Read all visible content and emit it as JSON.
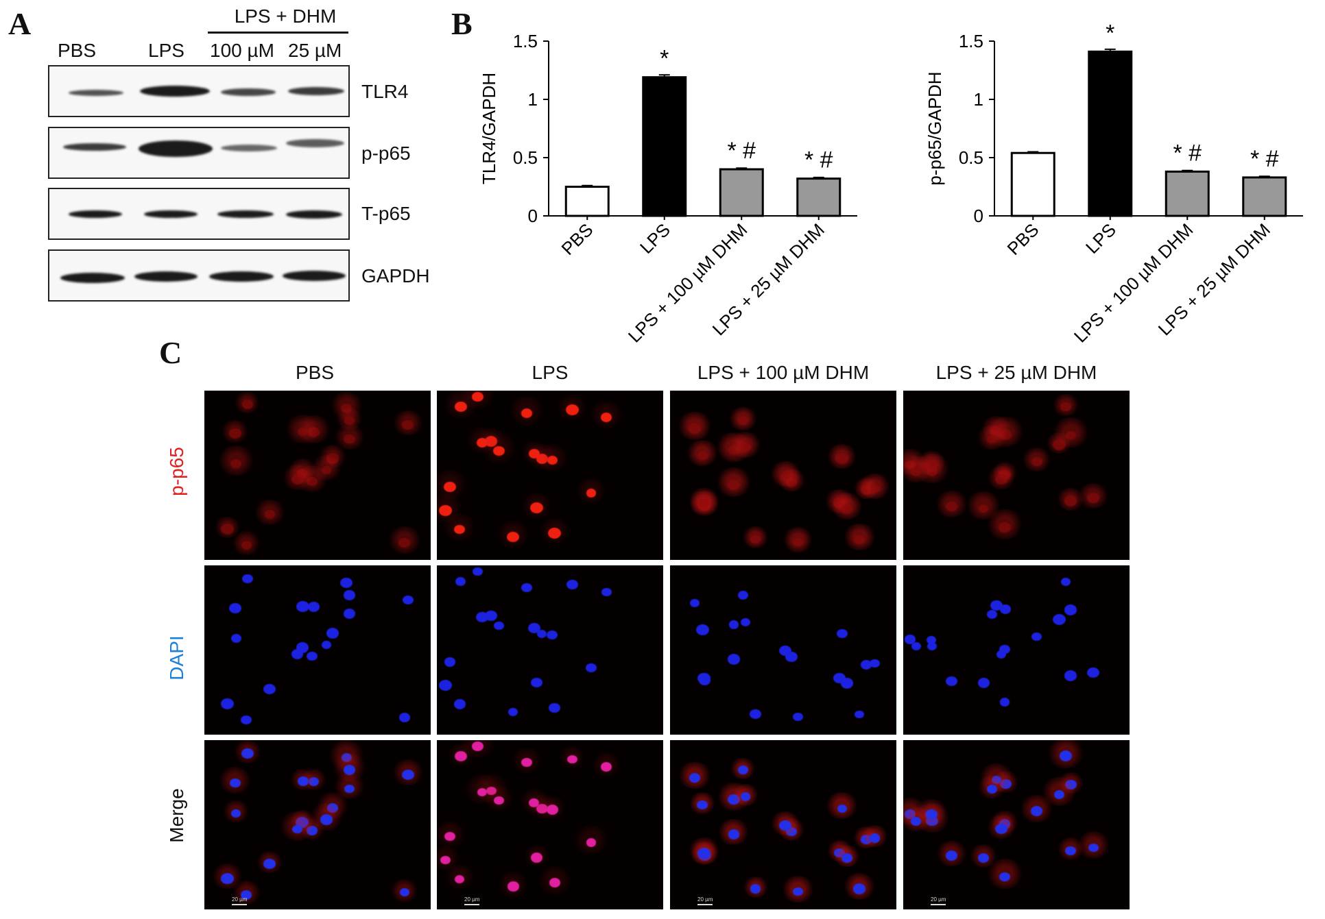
{
  "panels": {
    "a": "A",
    "b": "B",
    "c": "C"
  },
  "western_blot": {
    "lanes": [
      "PBS",
      "LPS",
      "100 µM",
      "25 µM"
    ],
    "group_header": "LPS + DHM",
    "proteins": [
      "TLR4",
      "p-p65",
      "T-p65",
      "GAPDH"
    ]
  },
  "chart_data": [
    {
      "type": "bar",
      "categories": [
        "PBS",
        "LPS",
        "LPS + 100 µM DHM",
        "LPS + 25 µM DHM"
      ],
      "values": [
        0.25,
        1.19,
        0.4,
        0.32
      ],
      "errors": [
        0.01,
        0.02,
        0.01,
        0.01
      ],
      "annotations": [
        "",
        "*",
        "* #",
        "* #"
      ],
      "bar_colors": [
        "#ffffff",
        "#000000",
        "#999999",
        "#999999"
      ],
      "ylabel": "TLR4/GAPDH",
      "ylim": [
        0,
        1.5
      ],
      "yticks": [
        "0",
        "0.5",
        "1",
        "1.5"
      ],
      "grid": false
    },
    {
      "type": "bar",
      "categories": [
        "PBS",
        "LPS",
        "LPS + 100 µM DHM",
        "LPS + 25 µM DHM"
      ],
      "values": [
        0.54,
        1.41,
        0.38,
        0.33
      ],
      "errors": [
        0.01,
        0.02,
        0.01,
        0.01
      ],
      "annotations": [
        "",
        "*",
        "* #",
        "* #"
      ],
      "bar_colors": [
        "#ffffff",
        "#000000",
        "#999999",
        "#999999"
      ],
      "ylabel": "p-p65/GAPDH",
      "ylim": [
        0,
        1.5
      ],
      "yticks": [
        "0",
        "0.5",
        "1",
        "1.5"
      ],
      "grid": false
    }
  ],
  "immunofluorescence": {
    "columns": [
      "PBS",
      "LPS",
      "LPS + 100 µM DHM",
      "LPS + 25 µM DHM"
    ],
    "rows": [
      {
        "label": "p-p65",
        "color": "#e02020"
      },
      {
        "label": "DAPI",
        "color": "#1e7fd8"
      },
      {
        "label": "Merge",
        "color": "#111111"
      }
    ],
    "scale_bar": "20 µm"
  }
}
